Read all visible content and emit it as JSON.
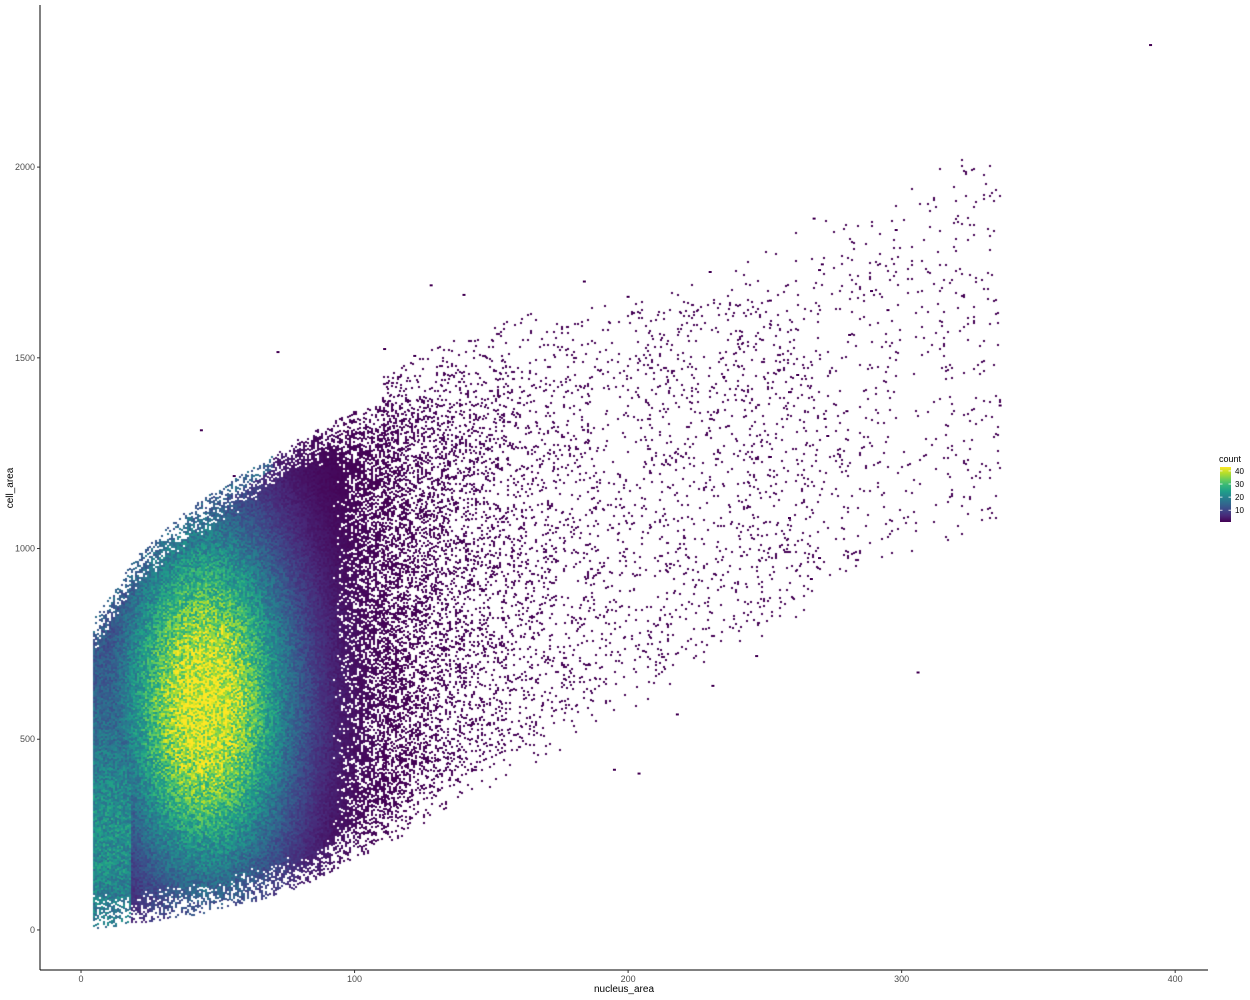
{
  "chart_data": {
    "type": "heatmap",
    "subtype": "hexbin-density",
    "title": "",
    "xlabel": "nucleus_area",
    "ylabel": "cell_area",
    "xlim": [
      -15,
      412
    ],
    "ylim": [
      -105,
      2425
    ],
    "x_ticks": [
      0,
      100,
      200,
      300,
      400
    ],
    "y_ticks": [
      0,
      500,
      1000,
      1500,
      2000
    ],
    "x_tick_labels": [
      "0",
      "100",
      "200",
      "300",
      "400"
    ],
    "y_tick_labels": [
      "0",
      "500",
      "1000",
      "1500",
      "2000"
    ],
    "grid": false,
    "legend": {
      "title": "count",
      "position": "right",
      "min": 1,
      "max": 43,
      "breaks": [
        10,
        20,
        30,
        40
      ],
      "labels": [
        "10",
        "20",
        "30",
        "40"
      ]
    },
    "colormap": [
      "#440154",
      "#482878",
      "#3e4989",
      "#31688e",
      "#26828e",
      "#1f9e89",
      "#35b779",
      "#6ece58",
      "#b5de2b",
      "#fde725"
    ],
    "density_description": {
      "x_min": 4,
      "lower_boundary": [
        [
          4,
          5
        ],
        [
          20,
          20
        ],
        [
          40,
          40
        ],
        [
          60,
          70
        ],
        [
          80,
          115
        ],
        [
          100,
          185
        ],
        [
          120,
          260
        ]
      ],
      "upper_boundary": [
        [
          4,
          810
        ],
        [
          10,
          870
        ],
        [
          20,
          980
        ],
        [
          40,
          1110
        ],
        [
          60,
          1200
        ],
        [
          80,
          1290
        ],
        [
          100,
          1360
        ],
        [
          120,
          1420
        ]
      ],
      "peak": {
        "nucleus_area": 45,
        "cell_area": 600,
        "count": 43
      }
    },
    "outliers": [
      {
        "x": 391,
        "y": 2320
      },
      {
        "x": 298,
        "y": 1835
      },
      {
        "x": 268,
        "y": 1865
      },
      {
        "x": 271,
        "y": 1745
      },
      {
        "x": 270,
        "y": 1730
      },
      {
        "x": 289,
        "y": 1675
      },
      {
        "x": 295,
        "y": 1625
      },
      {
        "x": 281,
        "y": 1560
      },
      {
        "x": 336,
        "y": 1375
      },
      {
        "x": 306,
        "y": 675
      },
      {
        "x": 230,
        "y": 1725
      },
      {
        "x": 128,
        "y": 1690
      },
      {
        "x": 184,
        "y": 1700
      },
      {
        "x": 140,
        "y": 1665
      },
      {
        "x": 252,
        "y": 1650
      },
      {
        "x": 262,
        "y": 1455
      },
      {
        "x": 272,
        "y": 1340
      },
      {
        "x": 273,
        "y": 1295
      },
      {
        "x": 280,
        "y": 1360
      },
      {
        "x": 259,
        "y": 1080
      },
      {
        "x": 267,
        "y": 920
      },
      {
        "x": 270,
        "y": 975
      },
      {
        "x": 247,
        "y": 718
      },
      {
        "x": 231,
        "y": 640
      },
      {
        "x": 218,
        "y": 565
      },
      {
        "x": 204,
        "y": 410
      },
      {
        "x": 195,
        "y": 420
      },
      {
        "x": 72,
        "y": 1515
      },
      {
        "x": 111,
        "y": 1523
      },
      {
        "x": 122,
        "y": 1505
      },
      {
        "x": 56,
        "y": 1190
      },
      {
        "x": 44,
        "y": 1310
      },
      {
        "x": 252,
        "y": 1240
      },
      {
        "x": 259,
        "y": 1410
      },
      {
        "x": 235,
        "y": 1450
      },
      {
        "x": 200,
        "y": 1660
      }
    ]
  }
}
